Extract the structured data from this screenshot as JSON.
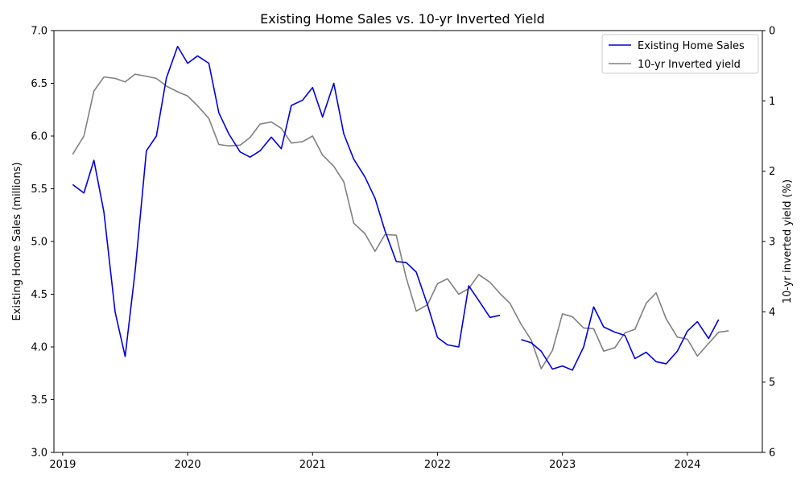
{
  "chart_data": {
    "type": "line",
    "title": "Existing Home Sales vs. 10-yr Inverted Yield",
    "xlabel": "",
    "ylabel_left": "Existing Home Sales (millions)",
    "ylabel_right": "10-yr inverted yield (%)",
    "ylim_left": [
      3.0,
      7.0
    ],
    "ylim_right": [
      0,
      6
    ],
    "right_axis_inverted": true,
    "xlim": [
      2018.93,
      2024.6
    ],
    "x_ticks": [
      2019,
      2020,
      2021,
      2022,
      2023,
      2024
    ],
    "x_tick_labels": [
      "2019",
      "2020",
      "2021",
      "2022",
      "2023",
      "2024"
    ],
    "y_left_ticks": [
      3.0,
      3.5,
      4.0,
      4.5,
      5.0,
      5.5,
      6.0,
      6.5,
      7.0
    ],
    "y_left_tick_labels": [
      "3.0",
      "3.5",
      "4.0",
      "4.5",
      "5.0",
      "5.5",
      "6.0",
      "6.5",
      "7.0"
    ],
    "y_right_ticks": [
      0,
      1,
      2,
      3,
      4,
      5,
      6
    ],
    "y_right_tick_labels": [
      "0",
      "1",
      "2",
      "3",
      "4",
      "5",
      "6"
    ],
    "grid": false,
    "legend_position": "top-right",
    "series": [
      {
        "name": "Existing Home Sales",
        "axis": "left",
        "color": "#0000dd",
        "x": [
          2019.08,
          2019.17,
          2019.25,
          2019.33,
          2019.42,
          2019.5,
          2019.58,
          2019.67,
          2019.75,
          2019.83,
          2019.92,
          2020.0,
          2020.08,
          2020.17,
          2020.25,
          2020.33,
          2020.42,
          2020.5,
          2020.58,
          2020.67,
          2020.75,
          2020.83,
          2020.92,
          2021.0,
          2021.08,
          2021.17,
          2021.25,
          2021.33,
          2021.42,
          2021.5,
          2021.58,
          2021.67,
          2021.75,
          2021.83,
          2021.92,
          2022.0,
          2022.08,
          2022.17,
          2022.25,
          2022.33,
          2022.42,
          2022.5,
          2022.58,
          2022.67,
          2022.75,
          2022.83,
          2022.92,
          2023.0,
          2023.08,
          2023.17,
          2023.25,
          2023.33,
          2023.42,
          2023.5,
          2023.58,
          2023.67,
          2023.75,
          2023.83,
          2023.92,
          2024.0,
          2024.08,
          2024.17,
          2024.25
        ],
        "y": [
          5.54,
          5.46,
          5.77,
          5.28,
          4.33,
          3.91,
          4.72,
          5.86,
          6.0,
          6.55,
          6.85,
          6.69,
          6.76,
          6.69,
          6.22,
          6.02,
          5.85,
          5.8,
          5.86,
          5.99,
          5.88,
          6.29,
          6.34,
          6.46,
          6.18,
          6.5,
          6.02,
          5.78,
          5.61,
          5.41,
          5.1,
          4.81,
          4.8,
          4.71,
          4.4,
          4.09,
          4.02,
          4.0,
          4.58,
          4.44,
          4.28,
          4.3,
          null,
          4.07,
          4.04,
          3.96,
          3.79,
          3.82,
          3.78,
          4.0,
          4.38,
          4.19,
          4.14,
          4.11,
          3.89,
          3.95,
          3.86,
          3.84,
          3.96,
          4.15,
          4.24,
          4.08,
          4.26
        ]
      },
      {
        "name": "10-yr Inverted yield",
        "axis": "right",
        "color": "#808080",
        "x": [
          2019.08,
          2019.17,
          2019.25,
          2019.33,
          2019.42,
          2019.5,
          2019.58,
          2019.67,
          2019.75,
          2019.83,
          2019.92,
          2020.0,
          2020.08,
          2020.17,
          2020.25,
          2020.33,
          2020.42,
          2020.5,
          2020.58,
          2020.67,
          2020.75,
          2020.83,
          2020.92,
          2021.0,
          2021.08,
          2021.17,
          2021.25,
          2021.33,
          2021.42,
          2021.5,
          2021.58,
          2021.67,
          2021.75,
          2021.83,
          2021.92,
          2022.0,
          2022.08,
          2022.17,
          2022.25,
          2022.33,
          2022.42,
          2022.5,
          2022.58,
          2022.67,
          2022.75,
          2022.83,
          2022.92,
          2023.0,
          2023.08,
          2023.17,
          2023.25,
          2023.33,
          2023.42,
          2023.5,
          2023.58,
          2023.67,
          2023.75,
          2023.83,
          2023.92,
          2024.0,
          2024.08,
          2024.17,
          2024.25,
          2024.33
        ],
        "y": [
          1.76,
          1.5,
          0.86,
          0.66,
          0.68,
          0.73,
          0.62,
          0.65,
          0.68,
          0.79,
          0.87,
          0.93,
          1.07,
          1.25,
          1.62,
          1.64,
          1.63,
          1.52,
          1.33,
          1.3,
          1.39,
          1.6,
          1.58,
          1.5,
          1.77,
          1.93,
          2.15,
          2.74,
          2.89,
          3.14,
          2.9,
          2.91,
          3.52,
          3.99,
          3.9,
          3.6,
          3.53,
          3.75,
          3.67,
          3.47,
          3.58,
          3.74,
          3.88,
          4.18,
          4.4,
          4.81,
          4.55,
          4.03,
          4.07,
          4.23,
          4.24,
          4.56,
          4.51,
          4.3,
          4.25,
          3.88,
          3.73,
          4.1,
          4.36,
          4.39,
          4.63,
          4.45,
          4.29,
          4.27
        ]
      }
    ]
  }
}
